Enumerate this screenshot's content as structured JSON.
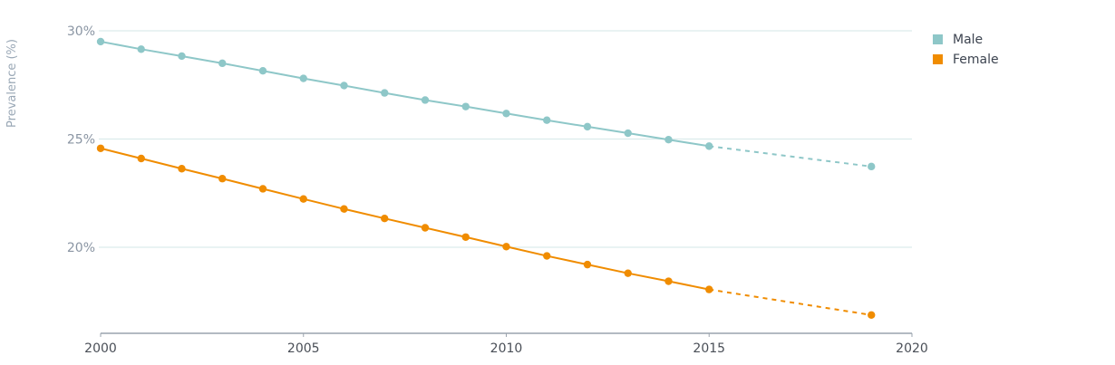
{
  "chart_data": {
    "type": "line",
    "title": "",
    "xlabel": "",
    "ylabel": "Prevalence (%)",
    "xlim": [
      2000,
      2020
    ],
    "ylim": [
      16,
      30
    ],
    "x_ticks": [
      "2000",
      "2005",
      "2010",
      "2015",
      "2020"
    ],
    "y_ticks": [
      "20%",
      "25%",
      "30%"
    ],
    "grid": true,
    "legend_position": "top-right",
    "series": [
      {
        "name": "Male",
        "color": "#8ec7c8",
        "points": [
          {
            "x": 2000,
            "y": 29.5
          },
          {
            "x": 2001,
            "y": 29.15
          },
          {
            "x": 2002,
            "y": 28.83
          },
          {
            "x": 2003,
            "y": 28.5
          },
          {
            "x": 2004,
            "y": 28.15
          },
          {
            "x": 2005,
            "y": 27.8
          },
          {
            "x": 2006,
            "y": 27.47
          },
          {
            "x": 2007,
            "y": 27.13
          },
          {
            "x": 2008,
            "y": 26.8
          },
          {
            "x": 2009,
            "y": 26.5
          },
          {
            "x": 2010,
            "y": 26.18
          },
          {
            "x": 2011,
            "y": 25.87
          },
          {
            "x": 2012,
            "y": 25.57
          },
          {
            "x": 2013,
            "y": 25.27
          },
          {
            "x": 2014,
            "y": 24.97
          },
          {
            "x": 2015,
            "y": 24.67
          }
        ],
        "projection": [
          {
            "x": 2015,
            "y": 24.67
          },
          {
            "x": 2019,
            "y": 23.73
          }
        ]
      },
      {
        "name": "Female",
        "color": "#f08c00",
        "points": [
          {
            "x": 2000,
            "y": 24.57
          },
          {
            "x": 2001,
            "y": 24.1
          },
          {
            "x": 2002,
            "y": 23.63
          },
          {
            "x": 2003,
            "y": 23.17
          },
          {
            "x": 2004,
            "y": 22.7
          },
          {
            "x": 2005,
            "y": 22.23
          },
          {
            "x": 2006,
            "y": 21.77
          },
          {
            "x": 2007,
            "y": 21.33
          },
          {
            "x": 2008,
            "y": 20.9
          },
          {
            "x": 2009,
            "y": 20.47
          },
          {
            "x": 2010,
            "y": 20.03
          },
          {
            "x": 2011,
            "y": 19.6
          },
          {
            "x": 2012,
            "y": 19.2
          },
          {
            "x": 2013,
            "y": 18.8
          },
          {
            "x": 2014,
            "y": 18.43
          },
          {
            "x": 2015,
            "y": 18.05
          }
        ],
        "projection": [
          {
            "x": 2015,
            "y": 18.05
          },
          {
            "x": 2019,
            "y": 16.87
          }
        ]
      }
    ],
    "grid_color": "#dcecec",
    "axis_color": "#9aa3ad"
  }
}
